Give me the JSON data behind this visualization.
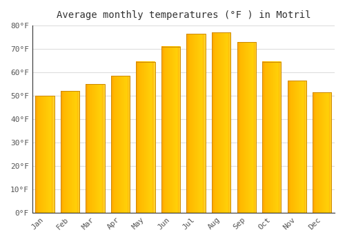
{
  "title": "Average monthly temperatures (°F ) in Motril",
  "months": [
    "Jan",
    "Feb",
    "Mar",
    "Apr",
    "May",
    "Jun",
    "Jul",
    "Aug",
    "Sep",
    "Oct",
    "Nov",
    "Dec"
  ],
  "values": [
    50,
    52,
    55,
    58.5,
    64.5,
    71,
    76.5,
    77,
    73,
    64.5,
    56.5,
    51.5
  ],
  "background_color": "#ffffff",
  "ylim": [
    0,
    80
  ],
  "yticks": [
    0,
    10,
    20,
    30,
    40,
    50,
    60,
    70,
    80
  ],
  "ytick_labels": [
    "0°F",
    "10°F",
    "20°F",
    "30°F",
    "40°F",
    "50°F",
    "60°F",
    "70°F",
    "80°F"
  ],
  "grid_color": "#dddddd",
  "title_fontsize": 10,
  "tick_fontsize": 8,
  "bar_color_light": "#FFD54F",
  "bar_color_dark": "#FFA000",
  "bar_edge_color": "#CC8800"
}
